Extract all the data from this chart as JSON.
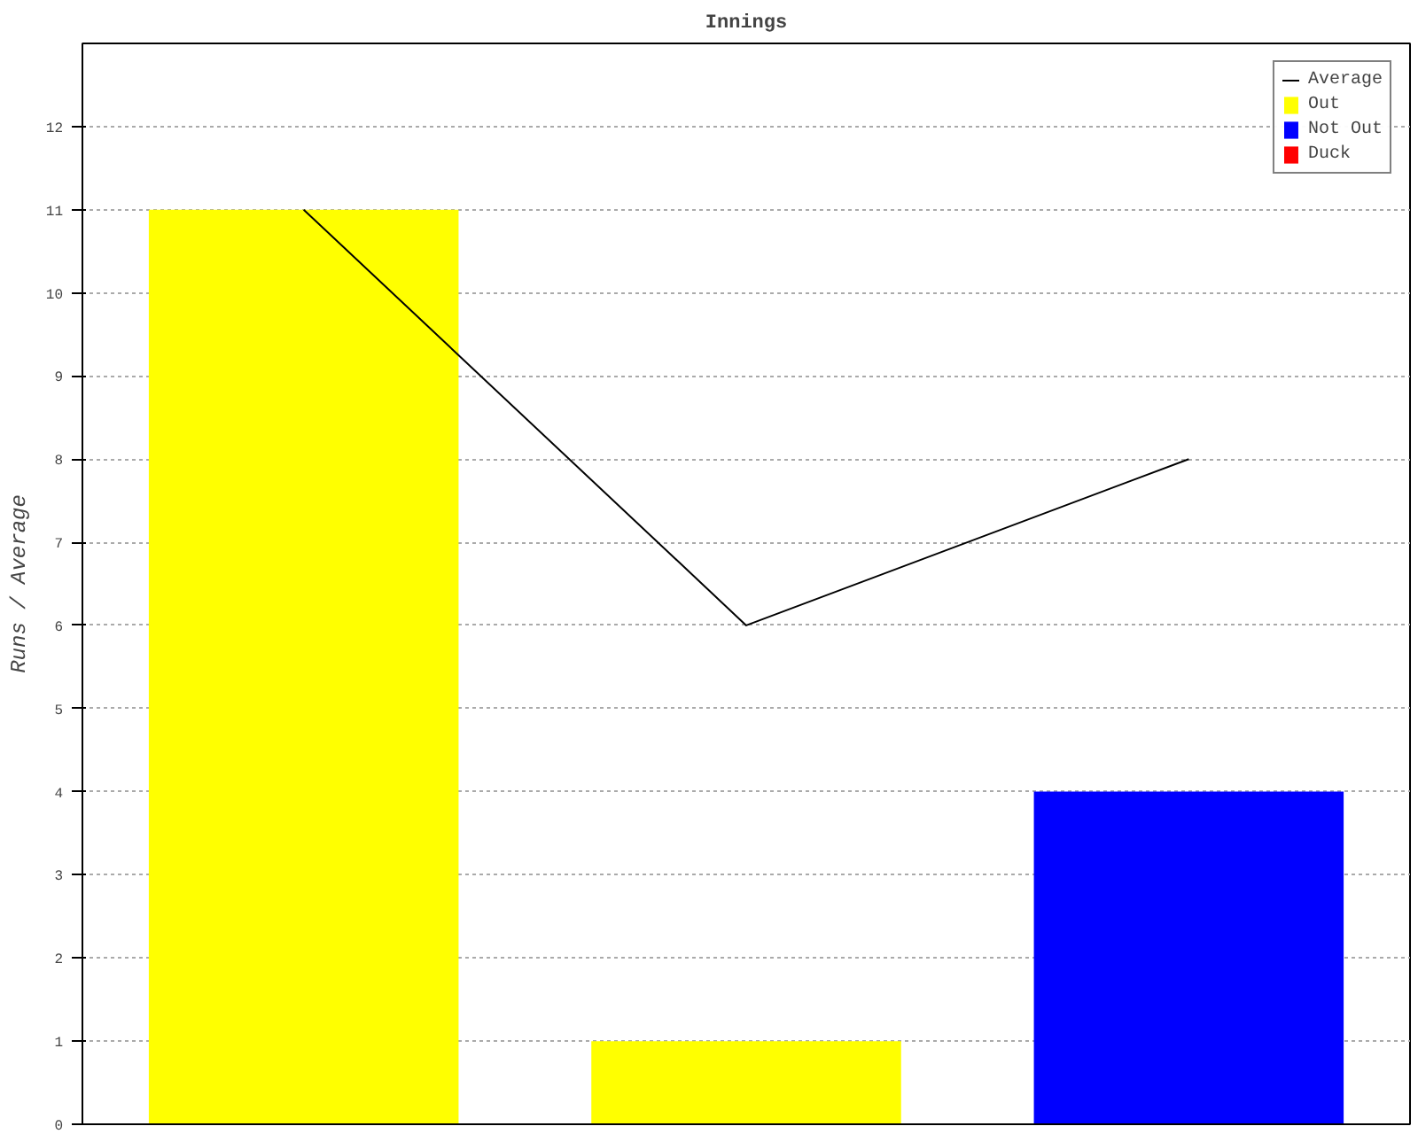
{
  "chart_data": {
    "type": "bar",
    "title": "Innings",
    "ylabel": "Runs / Average",
    "categories": [
      null,
      null,
      null
    ],
    "series": [
      {
        "name": "Average",
        "type": "line",
        "color": "#000000",
        "values": [
          11,
          6,
          8
        ]
      },
      {
        "name": "Out",
        "color": "#ffff00",
        "values": [
          11,
          1,
          null
        ]
      },
      {
        "name": "Not Out",
        "color": "#0000ff",
        "values": [
          null,
          null,
          4
        ]
      },
      {
        "name": "Duck",
        "color": "#ff0000",
        "values": [
          null,
          null,
          null
        ]
      }
    ],
    "ylim": [
      0,
      13
    ],
    "yticks": [
      0,
      1,
      2,
      3,
      4,
      5,
      6,
      7,
      8,
      9,
      10,
      11,
      12
    ],
    "grid": "y",
    "legend": "top right",
    "tick_labels": "y"
  }
}
